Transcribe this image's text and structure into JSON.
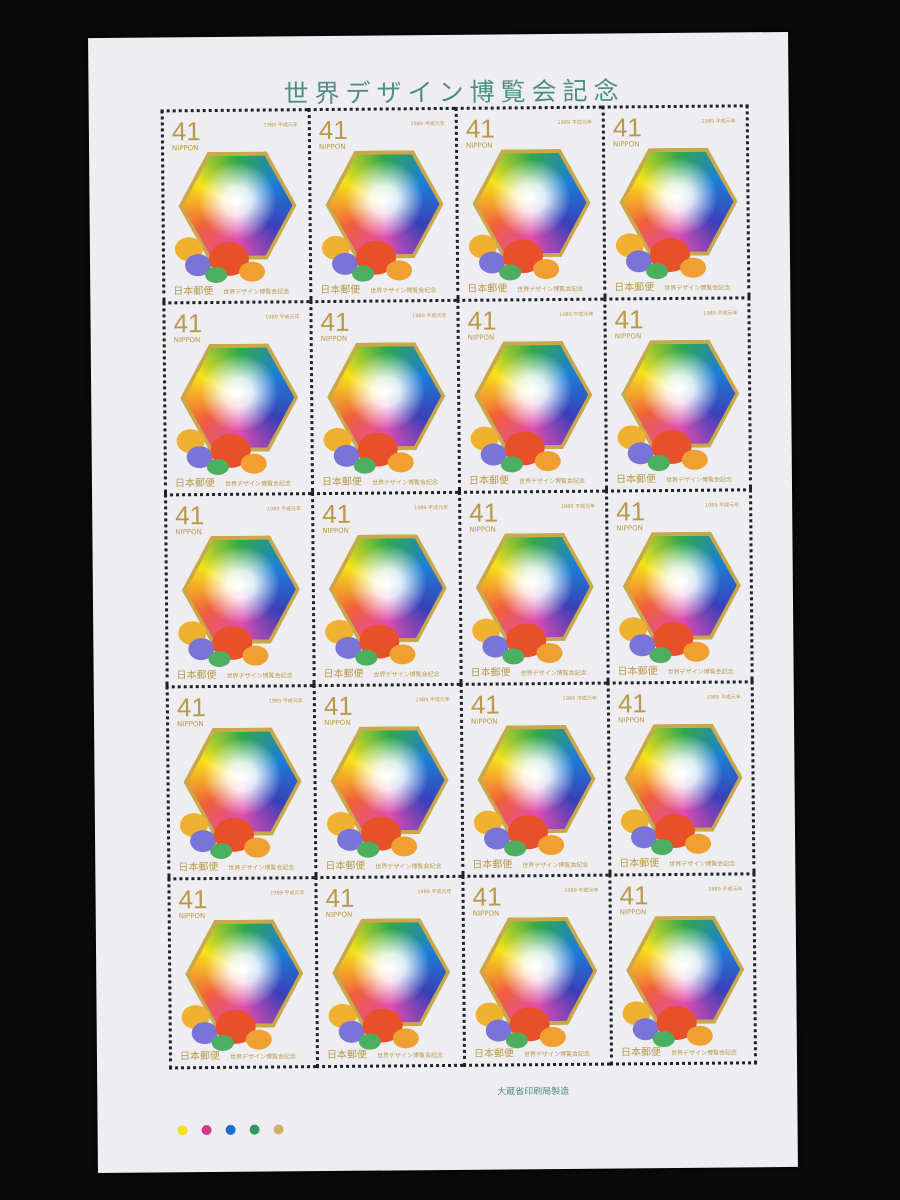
{
  "sheet_title": "世界デザイン博覧会記念",
  "stamp": {
    "value": "41",
    "country": "NIPPON",
    "year": "1989 平成元年",
    "issuer": "日本郵便",
    "caption": "世界デザイン博覧会記念"
  },
  "layout_rows": 5,
  "layout_cols": 4,
  "printer": "大蔵省印刷局製造",
  "color_marks": [
    "#f2e21c",
    "#d8358a",
    "#1f6fd0",
    "#2f9a5a",
    "#d4b070"
  ]
}
